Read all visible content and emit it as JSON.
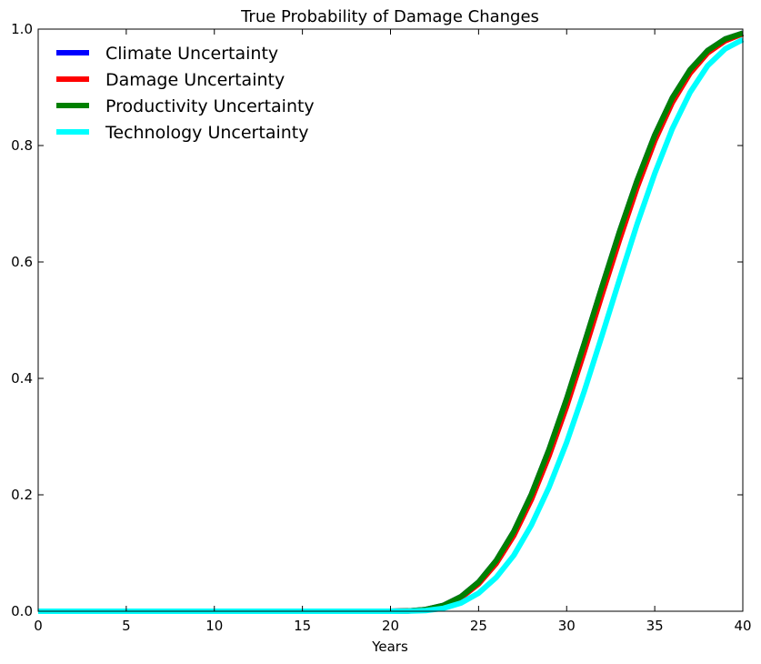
{
  "chart_data": {
    "type": "line",
    "title": "True Probability of Damage Changes",
    "xlabel": "Years",
    "ylabel": "",
    "xlim": [
      0,
      40
    ],
    "ylim": [
      0,
      1.0
    ],
    "xticks": [
      "0",
      "5",
      "10",
      "15",
      "20",
      "25",
      "30",
      "35",
      "40"
    ],
    "yticks": [
      "0.0",
      "0.2",
      "0.4",
      "0.6",
      "0.8",
      "1.0"
    ],
    "grid": false,
    "legend_position": "top-left",
    "x": [
      0,
      5,
      10,
      15,
      20,
      21,
      22,
      23,
      24,
      25,
      26,
      27,
      28,
      29,
      30,
      31,
      32,
      33,
      34,
      35,
      36,
      37,
      38,
      39,
      40
    ],
    "series": [
      {
        "name": "Climate Uncertainty",
        "color": "#0000ff",
        "values": [
          0,
          0,
          0,
          0,
          0.0001,
          0.0005,
          0.003,
          0.01,
          0.025,
          0.05,
          0.087,
          0.137,
          0.201,
          0.278,
          0.365,
          0.46,
          0.557,
          0.652,
          0.74,
          0.818,
          0.882,
          0.93,
          0.963,
          0.983,
          0.993
        ]
      },
      {
        "name": "Damage Uncertainty",
        "color": "#ff0000",
        "values": [
          0,
          0,
          0,
          0,
          0.0001,
          0.0004,
          0.0025,
          0.009,
          0.023,
          0.047,
          0.082,
          0.13,
          0.192,
          0.267,
          0.352,
          0.446,
          0.543,
          0.638,
          0.728,
          0.808,
          0.874,
          0.924,
          0.959,
          0.98,
          0.992
        ]
      },
      {
        "name": "Productivity Uncertainty",
        "color": "#008000",
        "values": [
          0,
          0,
          0,
          0,
          0.0001,
          0.0005,
          0.003,
          0.01,
          0.025,
          0.05,
          0.087,
          0.137,
          0.201,
          0.278,
          0.365,
          0.46,
          0.557,
          0.652,
          0.74,
          0.818,
          0.882,
          0.93,
          0.963,
          0.983,
          0.993
        ]
      },
      {
        "name": "Technology Uncertainty",
        "color": "#00ffff",
        "values": [
          0,
          0,
          0,
          0,
          0,
          0.0002,
          0.0012,
          0.005,
          0.014,
          0.031,
          0.058,
          0.096,
          0.148,
          0.213,
          0.29,
          0.378,
          0.473,
          0.57,
          0.665,
          0.752,
          0.829,
          0.891,
          0.937,
          0.966,
          0.982
        ]
      }
    ]
  }
}
